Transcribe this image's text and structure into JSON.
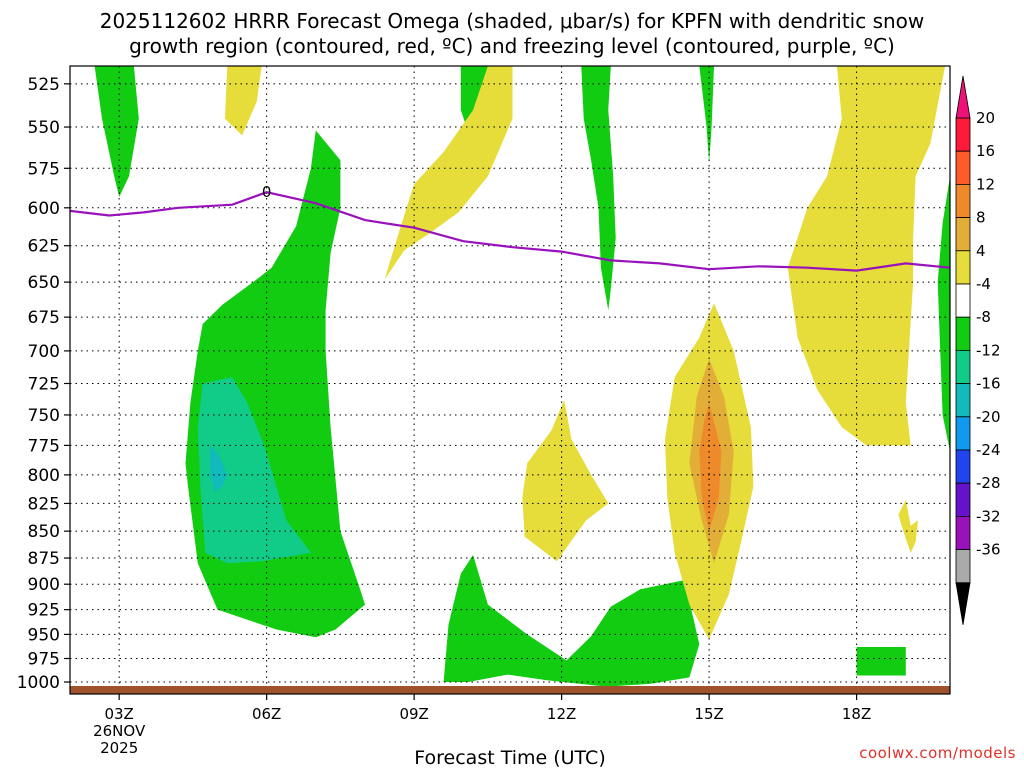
{
  "chart_data": {
    "type": "heatmap",
    "title_lines": [
      "2025112602 HRRR Forecast Omega (shaded, μbar/s) for KPFN with dendritic snow",
      "growth region (contoured, red, ºC) and freezing level (contoured, purple, ºC)"
    ],
    "xlabel": "Forecast Time (UTC)",
    "ylabel": "",
    "x_ticks": [
      {
        "hour": 3,
        "label": "03Z",
        "sub": [
          "26NOV",
          "2025"
        ]
      },
      {
        "hour": 6,
        "label": "06Z",
        "sub": []
      },
      {
        "hour": 9,
        "label": "09Z",
        "sub": []
      },
      {
        "hour": 12,
        "label": "12Z",
        "sub": []
      },
      {
        "hour": 15,
        "label": "15Z",
        "sub": []
      },
      {
        "hour": 18,
        "label": "18Z",
        "sub": []
      }
    ],
    "xlim": [
      2,
      19.9
    ],
    "y_ticks": [
      525,
      550,
      575,
      600,
      625,
      650,
      675,
      700,
      725,
      750,
      775,
      800,
      825,
      850,
      875,
      900,
      925,
      950,
      975,
      1000
    ],
    "ylim_hpa": [
      515,
      1013
    ],
    "colorbar": {
      "labels": [
        "20",
        "16",
        "12",
        "8",
        "4",
        "-4",
        "-8",
        "-12",
        "-16",
        "-20",
        "-24",
        "-28",
        "-32",
        "-36"
      ],
      "boundaries": [
        20,
        16,
        12,
        8,
        4,
        -4,
        -8,
        -12,
        -16,
        -20,
        -24,
        -28,
        -32,
        -36
      ],
      "colors": [
        "#ff1a3c",
        "#ff5a2a",
        "#ef8a2a",
        "#e3ae38",
        "#e6dc3a",
        "#ffffff",
        "#11cc11",
        "#11cc88",
        "#11bbbb",
        "#1199ee",
        "#2244ee",
        "#6611cc",
        "#9911bb",
        "#aaaaaa"
      ],
      "top_color": "#ee1177",
      "bottom_color": "#000000"
    },
    "freezing_level": {
      "label": "0",
      "color": "#9911bb",
      "points": [
        [
          2,
          602
        ],
        [
          2.8,
          605
        ],
        [
          3.5,
          603
        ],
        [
          4.2,
          600
        ],
        [
          5.3,
          598
        ],
        [
          6,
          590
        ],
        [
          7,
          597
        ],
        [
          8,
          608
        ],
        [
          9,
          613
        ],
        [
          10,
          622
        ],
        [
          11,
          626
        ],
        [
          12,
          629
        ],
        [
          13,
          635
        ],
        [
          14,
          637
        ],
        [
          15,
          641
        ],
        [
          16,
          639
        ],
        [
          17,
          640
        ],
        [
          18,
          642
        ],
        [
          19,
          637
        ],
        [
          19.9,
          640
        ]
      ]
    },
    "omega_regions": [
      {
        "value_range": "-8 to -4",
        "color": "#11cc11",
        "points": [
          [
            2.5,
            515
          ],
          [
            3.3,
            515
          ],
          [
            3.4,
            545
          ],
          [
            3.2,
            580
          ],
          [
            3.0,
            593
          ],
          [
            2.9,
            580
          ],
          [
            2.65,
            545
          ]
        ]
      },
      {
        "value_range": "-8 to -4",
        "color": "#11cc11",
        "points": [
          [
            5.1,
            666
          ],
          [
            5.8,
            648
          ],
          [
            6.1,
            640
          ],
          [
            6.6,
            612
          ],
          [
            6.9,
            575
          ],
          [
            7.0,
            552
          ],
          [
            7.5,
            570
          ],
          [
            7.5,
            600
          ],
          [
            7.3,
            630
          ],
          [
            7.2,
            670
          ],
          [
            7.2,
            700
          ],
          [
            7.3,
            760
          ],
          [
            7.5,
            850
          ],
          [
            7.9,
            905
          ],
          [
            8.0,
            920
          ],
          [
            7.4,
            945
          ],
          [
            7.0,
            953
          ],
          [
            6.2,
            945
          ],
          [
            5.6,
            935
          ],
          [
            5.0,
            925
          ],
          [
            4.6,
            880
          ],
          [
            4.4,
            810
          ],
          [
            4.35,
            790
          ],
          [
            4.45,
            740
          ],
          [
            4.6,
            700
          ],
          [
            4.7,
            680
          ]
        ]
      },
      {
        "value_range": "-12 to -8",
        "color": "#11cc88",
        "points": [
          [
            4.7,
            725
          ],
          [
            5.3,
            720
          ],
          [
            5.6,
            740
          ],
          [
            5.95,
            775
          ],
          [
            6.4,
            840
          ],
          [
            6.9,
            870
          ],
          [
            5.9,
            878
          ],
          [
            5.2,
            880
          ],
          [
            4.75,
            870
          ],
          [
            4.65,
            810
          ],
          [
            4.6,
            760
          ]
        ]
      },
      {
        "value_range": "-16 to -12",
        "color": "#11bbbb",
        "points": [
          [
            4.85,
            775
          ],
          [
            5.05,
            785
          ],
          [
            5.2,
            800
          ],
          [
            5.1,
            810
          ],
          [
            4.95,
            815
          ],
          [
            4.85,
            800
          ]
        ]
      },
      {
        "value_range": "-8 to -4",
        "color": "#11cc11",
        "points": [
          [
            9.95,
            515
          ],
          [
            10.6,
            515
          ],
          [
            10.4,
            540
          ],
          [
            10.1,
            553
          ],
          [
            9.95,
            540
          ]
        ]
      },
      {
        "value_range": "-8 to -4",
        "color": "#11cc11",
        "points": [
          [
            12.4,
            515
          ],
          [
            13,
            515
          ],
          [
            12.95,
            540
          ],
          [
            13.05,
            580
          ],
          [
            13.1,
            620
          ],
          [
            13.0,
            655
          ],
          [
            12.95,
            670
          ],
          [
            12.8,
            640
          ],
          [
            12.75,
            600
          ],
          [
            12.6,
            570
          ],
          [
            12.45,
            545
          ]
        ]
      },
      {
        "value_range": "-8 to -4",
        "color": "#11cc11",
        "points": [
          [
            14.8,
            515
          ],
          [
            15.1,
            515
          ],
          [
            15.05,
            550
          ],
          [
            15,
            572
          ],
          [
            14.95,
            550
          ]
        ]
      },
      {
        "value_range": "-8 to -4",
        "color": "#11cc11",
        "points": [
          [
            19.75,
            610
          ],
          [
            19.9,
            580
          ],
          [
            19.9,
            780
          ],
          [
            19.75,
            750
          ],
          [
            19.7,
            700
          ],
          [
            19.65,
            650
          ]
        ]
      },
      {
        "value_range": "-8 to -4",
        "color": "#11cc11",
        "points": [
          [
            9.6,
            1000
          ],
          [
            9.7,
            940
          ],
          [
            9.95,
            890
          ],
          [
            10.2,
            872
          ],
          [
            10.5,
            920
          ],
          [
            11.3,
            950
          ],
          [
            12.1,
            977
          ],
          [
            12.6,
            952
          ],
          [
            13,
            922
          ],
          [
            13.6,
            905
          ],
          [
            14.5,
            896
          ],
          [
            14.8,
            960
          ],
          [
            14.6,
            995
          ],
          [
            13.8,
            1002
          ],
          [
            12.9,
            1005
          ],
          [
            11.7,
            998
          ],
          [
            10.9,
            992
          ],
          [
            10.1,
            1000
          ]
        ]
      },
      {
        "value_range": "-8 to -4",
        "color": "#11cc11",
        "points": [
          [
            18.0,
            963
          ],
          [
            19.0,
            963
          ],
          [
            19.0,
            993
          ],
          [
            18.0,
            993
          ]
        ]
      },
      {
        "value_range": "4 to 8",
        "color": "#e6dc3a",
        "points": [
          [
            5.9,
            515
          ],
          [
            5.2,
            515
          ],
          [
            5.15,
            545
          ],
          [
            5.5,
            555
          ],
          [
            5.8,
            535
          ]
        ]
      },
      {
        "value_range": "4 to 8",
        "color": "#e6dc3a",
        "points": [
          [
            8.4,
            648
          ],
          [
            8.7,
            615
          ],
          [
            9.0,
            585
          ],
          [
            9.6,
            565
          ],
          [
            10.2,
            540
          ],
          [
            10.5,
            515
          ],
          [
            11.0,
            515
          ],
          [
            11.0,
            545
          ],
          [
            10.5,
            580
          ],
          [
            9.9,
            603
          ],
          [
            9.3,
            617
          ],
          [
            8.8,
            628
          ],
          [
            8.5,
            643
          ]
        ]
      },
      {
        "value_range": "4 to 8",
        "color": "#e6dc3a",
        "points": [
          [
            11.25,
            855
          ],
          [
            11.9,
            878
          ],
          [
            12.5,
            840
          ],
          [
            12.95,
            825
          ],
          [
            12.6,
            800
          ],
          [
            12.2,
            770
          ],
          [
            12.05,
            738
          ],
          [
            11.8,
            762
          ],
          [
            11.3,
            790
          ],
          [
            11.2,
            820
          ]
        ]
      },
      {
        "value_range": "4 to 8",
        "color": "#e6dc3a",
        "points": [
          [
            14.8,
            690
          ],
          [
            15.1,
            665
          ],
          [
            15.5,
            700
          ],
          [
            15.85,
            760
          ],
          [
            15.9,
            810
          ],
          [
            15.65,
            860
          ],
          [
            15.4,
            910
          ],
          [
            15.0,
            955
          ],
          [
            14.6,
            920
          ],
          [
            14.3,
            870
          ],
          [
            14.15,
            820
          ],
          [
            14.1,
            770
          ],
          [
            14.3,
            720
          ]
        ]
      },
      {
        "value_range": "8 to 12",
        "color": "#e3ae38",
        "points": [
          [
            15.0,
            706
          ],
          [
            15.3,
            735
          ],
          [
            15.5,
            780
          ],
          [
            15.4,
            835
          ],
          [
            15.1,
            880
          ],
          [
            14.85,
            840
          ],
          [
            14.6,
            790
          ],
          [
            14.75,
            735
          ]
        ]
      },
      {
        "value_range": "12 to 16",
        "color": "#ef8a2a",
        "points": [
          [
            15.0,
            740
          ],
          [
            15.25,
            780
          ],
          [
            15.2,
            820
          ],
          [
            15.0,
            850
          ],
          [
            14.85,
            820
          ],
          [
            14.8,
            780
          ],
          [
            14.9,
            755
          ]
        ]
      },
      {
        "value_range": "4 to 8",
        "color": "#e6dc3a",
        "points": [
          [
            17.6,
            515
          ],
          [
            19.8,
            515
          ],
          [
            19.5,
            560
          ],
          [
            19.2,
            580
          ],
          [
            19.15,
            620
          ],
          [
            19.15,
            650
          ],
          [
            19.0,
            740
          ],
          [
            19.1,
            775
          ],
          [
            18.2,
            775
          ],
          [
            17.7,
            760
          ],
          [
            17.2,
            730
          ],
          [
            16.8,
            690
          ],
          [
            16.6,
            640
          ],
          [
            17.0,
            600
          ],
          [
            17.4,
            580
          ],
          [
            17.7,
            545
          ]
        ]
      },
      {
        "value_range": "4 to 8",
        "color": "#e6dc3a",
        "points": [
          [
            19.0,
            822
          ],
          [
            19.1,
            845
          ],
          [
            19.25,
            840
          ],
          [
            19.2,
            860
          ],
          [
            19.1,
            870
          ],
          [
            18.95,
            850
          ],
          [
            18.85,
            835
          ]
        ]
      }
    ],
    "ground_color": "#a0522d"
  },
  "credit": "coolwx.com/models"
}
